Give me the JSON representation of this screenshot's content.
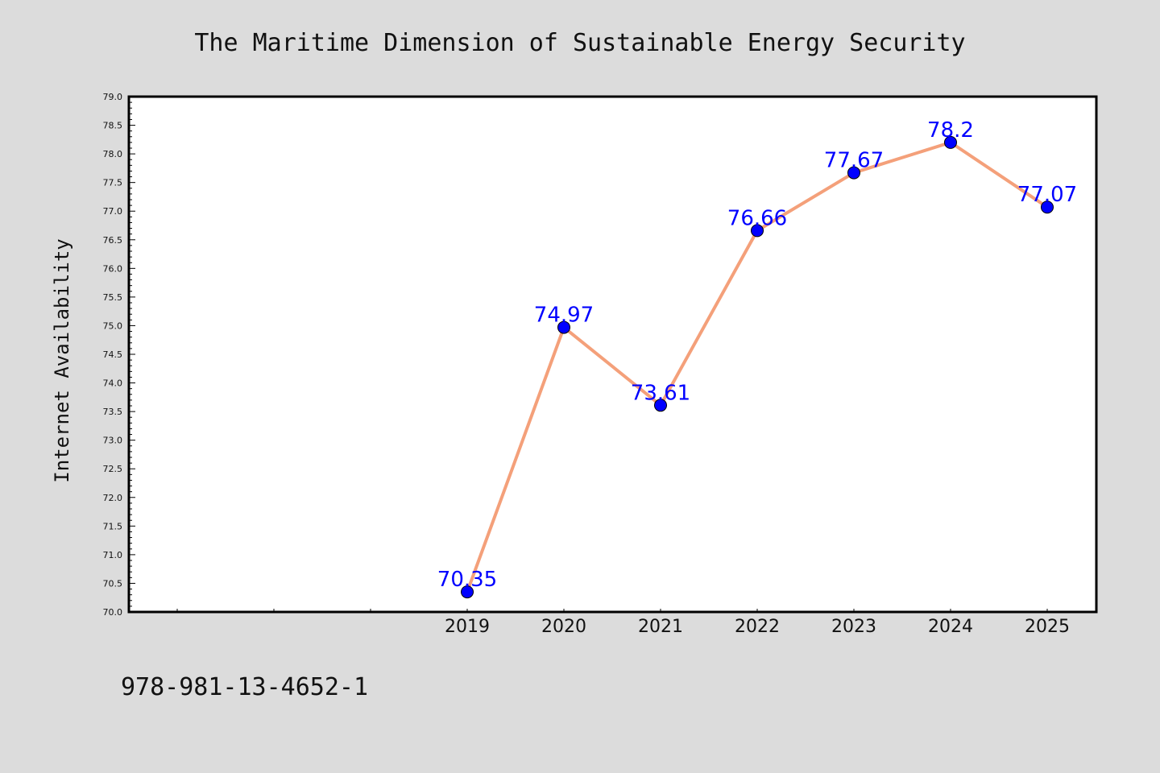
{
  "chart_data": {
    "type": "line",
    "title": "The Maritime Dimension of Sustainable Energy Security",
    "xlabel": "",
    "ylabel": "Internet Availability",
    "categories": [
      "2019",
      "2020",
      "2021",
      "2022",
      "2023",
      "2024",
      "2025"
    ],
    "values": [
      70.35,
      74.97,
      73.61,
      76.66,
      77.67,
      78.2,
      77.07
    ],
    "data_labels": [
      "70.35",
      "74.97",
      "73.61",
      "76.66",
      "77.67",
      "78.2",
      "77.07"
    ],
    "ylim": [
      70.0,
      79.0
    ],
    "y_ticks": [
      "70.0",
      "70.5",
      "71.0",
      "71.5",
      "72.0",
      "72.5",
      "73.0",
      "73.5",
      "74.0",
      "74.5",
      "75.0",
      "75.5",
      "76.0",
      "76.5",
      "77.0",
      "77.5",
      "78.0",
      "78.5",
      "79.0"
    ],
    "grid": false,
    "line_color": "#f4a07a",
    "marker_color": "#0000ff",
    "label_color": "#0000ff"
  },
  "footer": {
    "isbn": "978-981-13-4652-1"
  }
}
